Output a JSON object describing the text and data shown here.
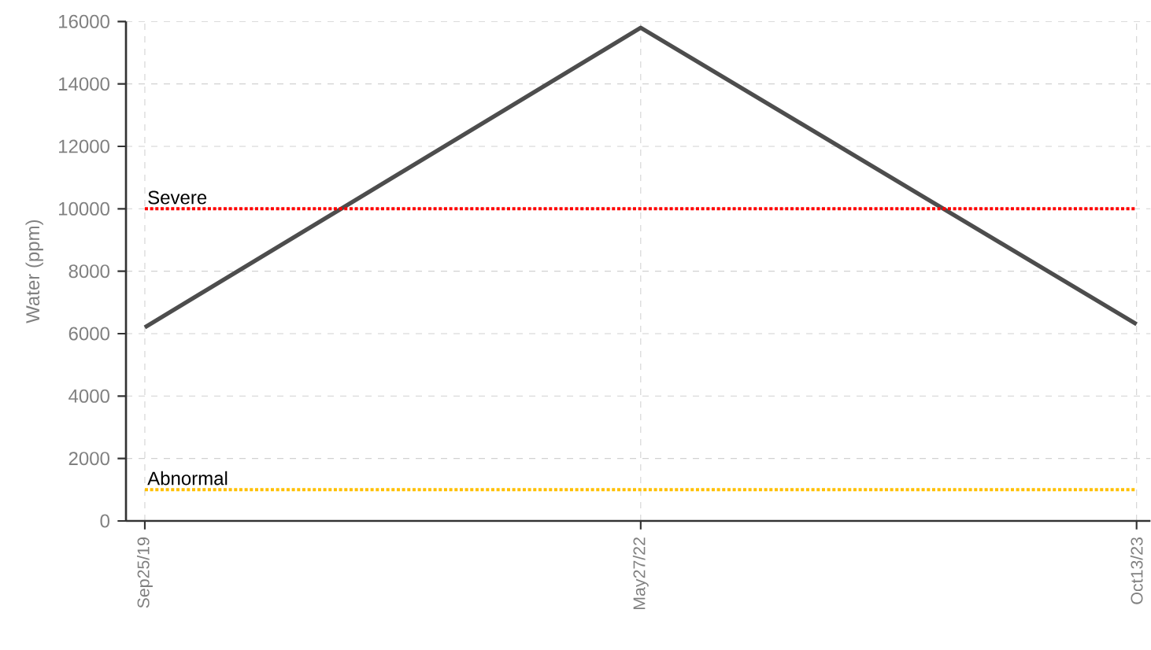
{
  "chart_data": {
    "type": "line",
    "ylabel": "Water (ppm)",
    "categories": [
      "Sep25/19",
      "May27/22",
      "Oct13/23"
    ],
    "series": [
      {
        "color": "#4d4d4d",
        "values": [
          6200,
          15800,
          6300
        ]
      }
    ],
    "ylim": [
      0,
      16000
    ],
    "yticks": [
      0,
      2000,
      4000,
      6000,
      8000,
      10000,
      12000,
      14000,
      16000
    ],
    "grid": true,
    "marker": "none",
    "line_style": "solid",
    "ref_lines": [
      {
        "axis": "y",
        "value": 10000,
        "label": "Severe",
        "color": "#ff0000",
        "line_style": "dotted"
      },
      {
        "axis": "y",
        "value": 1000,
        "label": "Abnormal",
        "color": "#ffc000",
        "line_style": "dotted"
      }
    ]
  }
}
